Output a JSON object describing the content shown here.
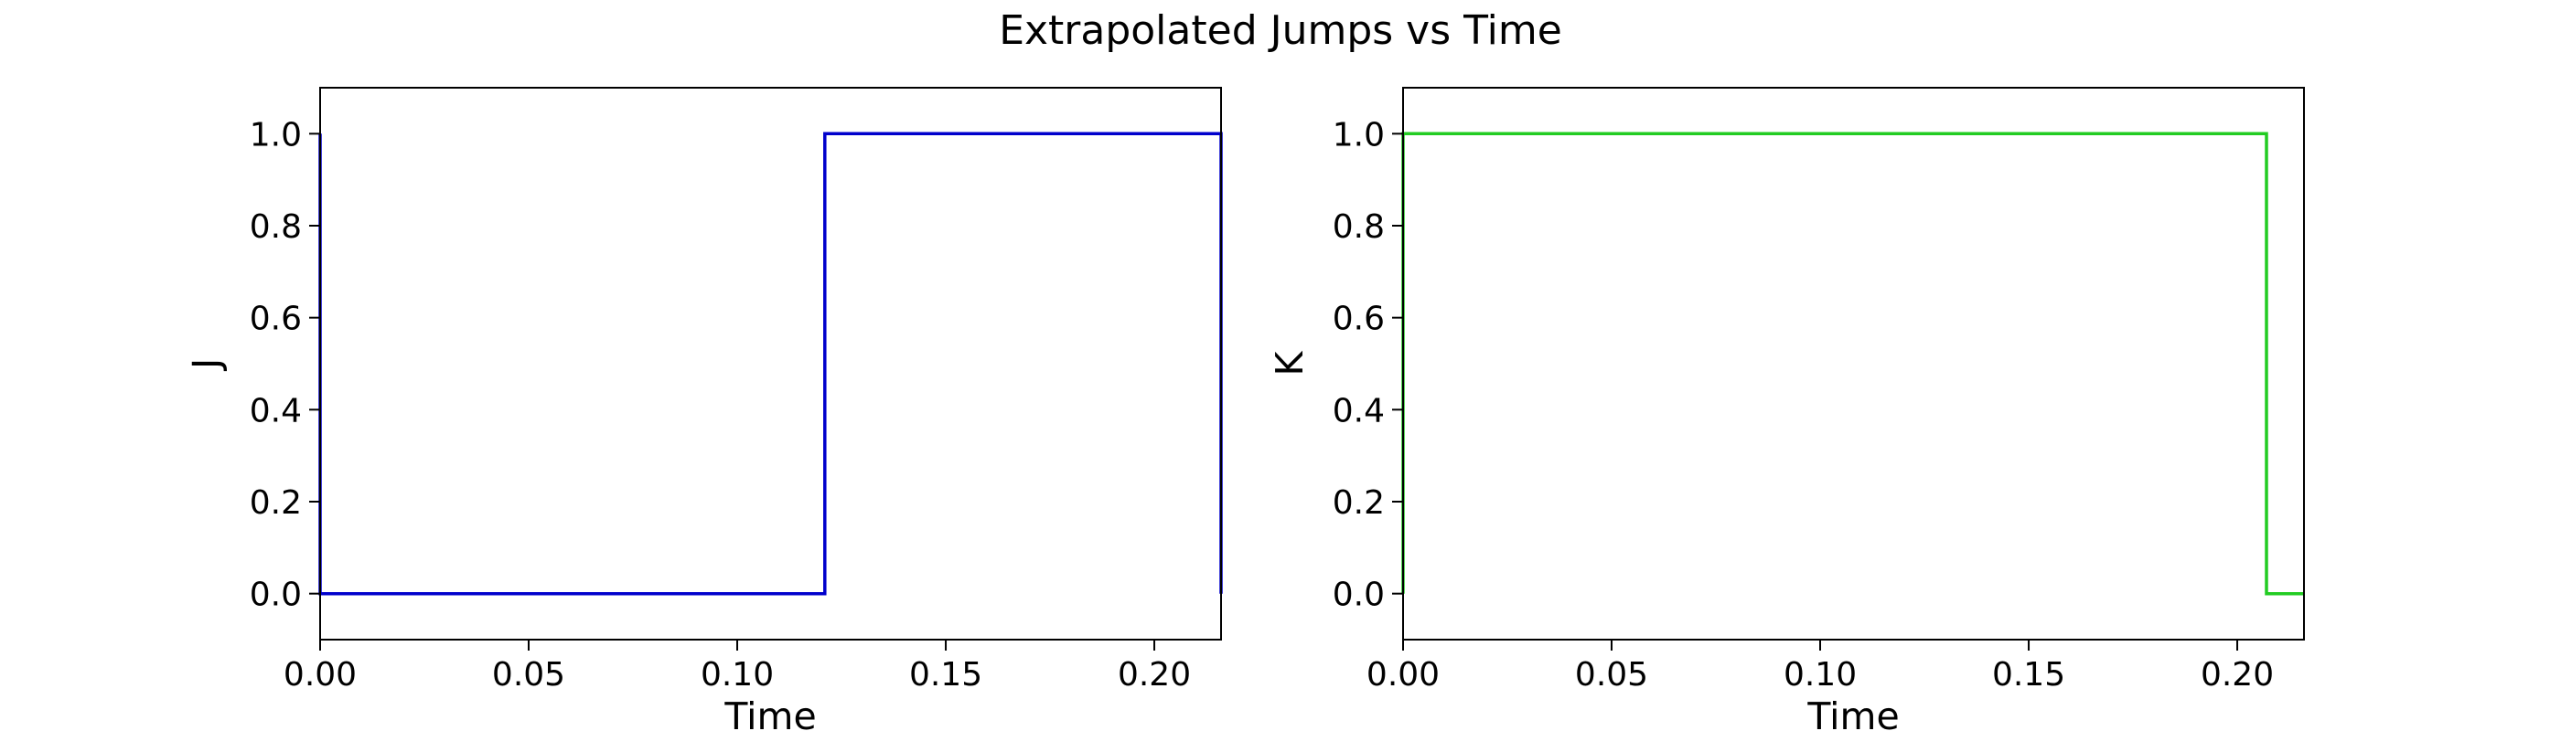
{
  "figure": {
    "title": "Extrapolated Jumps vs Time"
  },
  "chart_data": [
    {
      "type": "line",
      "step": true,
      "title": "",
      "xlabel": "Time",
      "ylabel": "J",
      "xlim": [
        0,
        0.216
      ],
      "ylim": [
        -0.1,
        1.1
      ],
      "xticks": [
        0,
        0.05,
        0.1,
        0.15,
        0.2
      ],
      "xtick_labels": [
        "0.00",
        "0.05",
        "0.10",
        "0.15",
        "0.20"
      ],
      "yticks": [
        0,
        0.2,
        0.4,
        0.6,
        0.8,
        1.0
      ],
      "ytick_labels": [
        "0.0",
        "0.2",
        "0.4",
        "0.6",
        "0.8",
        "1.0"
      ],
      "grid": false,
      "series": [
        {
          "color": "#0000cc",
          "x": [
            0,
            0,
            0.121,
            0.121,
            0.216,
            0.216
          ],
          "y": [
            1,
            0,
            0,
            1,
            1,
            0
          ]
        }
      ]
    },
    {
      "type": "line",
      "step": true,
      "title": "",
      "xlabel": "Time",
      "ylabel": "K",
      "xlim": [
        0,
        0.216
      ],
      "ylim": [
        -0.1,
        1.1
      ],
      "xticks": [
        0,
        0.05,
        0.1,
        0.15,
        0.2
      ],
      "xtick_labels": [
        "0.00",
        "0.05",
        "0.10",
        "0.15",
        "0.20"
      ],
      "yticks": [
        0,
        0.2,
        0.4,
        0.6,
        0.8,
        1.0
      ],
      "ytick_labels": [
        "0.0",
        "0.2",
        "0.4",
        "0.6",
        "0.8",
        "1.0"
      ],
      "grid": false,
      "series": [
        {
          "color": "#22cc22",
          "x": [
            0,
            0,
            0.207,
            0.207,
            0.216
          ],
          "y": [
            0,
            1,
            1,
            0,
            0
          ]
        }
      ]
    }
  ]
}
